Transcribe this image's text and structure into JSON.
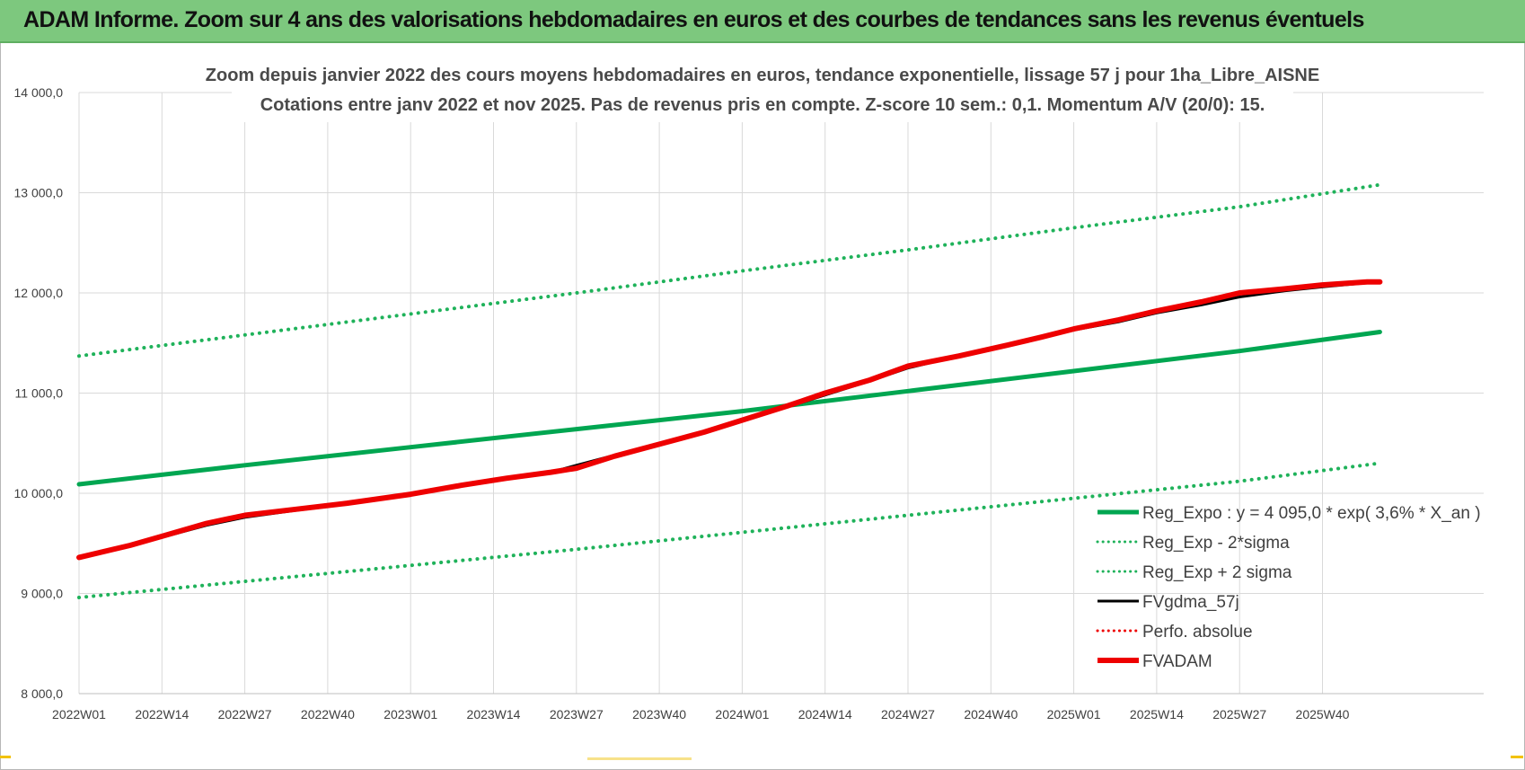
{
  "banner": {
    "title": "ADAM Informe. Zoom sur 4 ans des valorisations hebdomadaires en euros et des courbes de tendances sans les revenus éventuels"
  },
  "colors": {
    "banner_bg": "#7dc87e",
    "trend_green": "#00a651",
    "band_green": "#1fb25a",
    "fvgdma_black": "#000000",
    "fvadam_red": "#ee0000"
  },
  "chart_data": {
    "type": "line",
    "title_line1": "Zoom depuis janvier 2022 des cours moyens hebdomadaires en euros, tendance exponentielle, lissage 57 j pour 1ha_Libre_AISNE",
    "title_line2": "Cotations entre janv 2022 et nov 2025. Pas de revenus pris en compte. Z-score 10 sem.: 0,1. Momentum A/V (20/0): 15.",
    "xlabel": "",
    "ylabel": "",
    "ylim": [
      8000,
      14000
    ],
    "yticks": [
      {
        "value": 8000,
        "label": "8 000,0"
      },
      {
        "value": 9000,
        "label": "9 000,0"
      },
      {
        "value": 10000,
        "label": "10 000,0"
      },
      {
        "value": 11000,
        "label": "11 000,0"
      },
      {
        "value": 12000,
        "label": "12 000,0"
      },
      {
        "value": 13000,
        "label": "13 000,0"
      },
      {
        "value": 14000,
        "label": "14 000,0"
      }
    ],
    "x_range_weeks": [
      0,
      196
    ],
    "xticks": [
      {
        "week": 0,
        "label": "2022W01"
      },
      {
        "week": 13,
        "label": "2022W14"
      },
      {
        "week": 26,
        "label": "2022W27"
      },
      {
        "week": 39,
        "label": "2022W40"
      },
      {
        "week": 52,
        "label": "2023W01"
      },
      {
        "week": 65,
        "label": "2023W14"
      },
      {
        "week": 78,
        "label": "2023W27"
      },
      {
        "week": 91,
        "label": "2023W40"
      },
      {
        "week": 104,
        "label": "2024W01"
      },
      {
        "week": 117,
        "label": "2024W14"
      },
      {
        "week": 130,
        "label": "2024W27"
      },
      {
        "week": 143,
        "label": "2024W40"
      },
      {
        "week": 156,
        "label": "2025W01"
      },
      {
        "week": 169,
        "label": "2025W14"
      },
      {
        "week": 182,
        "label": "2025W27"
      },
      {
        "week": 195,
        "label": "2025W40"
      }
    ],
    "grid": true,
    "legend_position": "bottom-right",
    "series": [
      {
        "name": "Reg_Expo : y = 4 095,0 * exp( 3,6% *  X_an )",
        "style": "solid",
        "color": "#00a651",
        "width": 5,
        "x": [
          0,
          26,
          52,
          78,
          104,
          130,
          156,
          182,
          204
        ],
        "values": [
          10090,
          10280,
          10460,
          10640,
          10820,
          11020,
          11220,
          11420,
          11610
        ]
      },
      {
        "name": "Reg_Exp - 2*sigma",
        "style": "dotted",
        "color": "#1fb25a",
        "width": 4,
        "x": [
          0,
          26,
          52,
          78,
          104,
          130,
          156,
          182,
          204
        ],
        "values": [
          8960,
          9120,
          9280,
          9440,
          9610,
          9780,
          9950,
          10120,
          10300
        ]
      },
      {
        "name": "Reg_Exp + 2 sigma",
        "style": "dotted",
        "color": "#1fb25a",
        "width": 4,
        "x": [
          0,
          26,
          52,
          78,
          104,
          130,
          156,
          182,
          204
        ],
        "values": [
          11370,
          11580,
          11790,
          12000,
          12220,
          12430,
          12650,
          12860,
          13080
        ]
      },
      {
        "name": "FVgdma_57j",
        "style": "solid",
        "color": "#000000",
        "width": 3,
        "x": [
          0,
          8,
          13,
          20,
          26,
          34,
          42,
          52,
          60,
          67,
          74,
          78,
          84,
          91,
          98,
          104,
          111,
          117,
          124,
          130,
          138,
          145,
          151,
          156,
          163,
          169,
          176,
          182,
          189,
          195,
          202,
          204
        ],
        "values": [
          9360,
          9480,
          9560,
          9680,
          9760,
          9830,
          9890,
          9990,
          10070,
          10140,
          10210,
          10280,
          10380,
          10500,
          10620,
          10720,
          10860,
          10980,
          11120,
          11250,
          11370,
          11460,
          11550,
          11630,
          11710,
          11800,
          11880,
          11960,
          12020,
          12060,
          12100,
          12100
        ]
      },
      {
        "name": "Perfo. absolue",
        "style": "dotted",
        "color": "#ee0000",
        "width": 3,
        "x": [],
        "values": []
      },
      {
        "name": "FVADAM",
        "style": "solid",
        "color": "#ee0000",
        "width": 6,
        "x": [
          0,
          8,
          13,
          20,
          26,
          34,
          42,
          52,
          60,
          67,
          74,
          78,
          84,
          91,
          98,
          104,
          111,
          117,
          124,
          130,
          138,
          145,
          151,
          156,
          163,
          169,
          176,
          182,
          189,
          195,
          202,
          204
        ],
        "values": [
          9360,
          9480,
          9570,
          9700,
          9780,
          9840,
          9900,
          9990,
          10080,
          10150,
          10210,
          10250,
          10370,
          10490,
          10610,
          10730,
          10870,
          11000,
          11130,
          11270,
          11370,
          11470,
          11560,
          11640,
          11730,
          11820,
          11910,
          12000,
          12040,
          12080,
          12110,
          12110
        ]
      }
    ]
  }
}
